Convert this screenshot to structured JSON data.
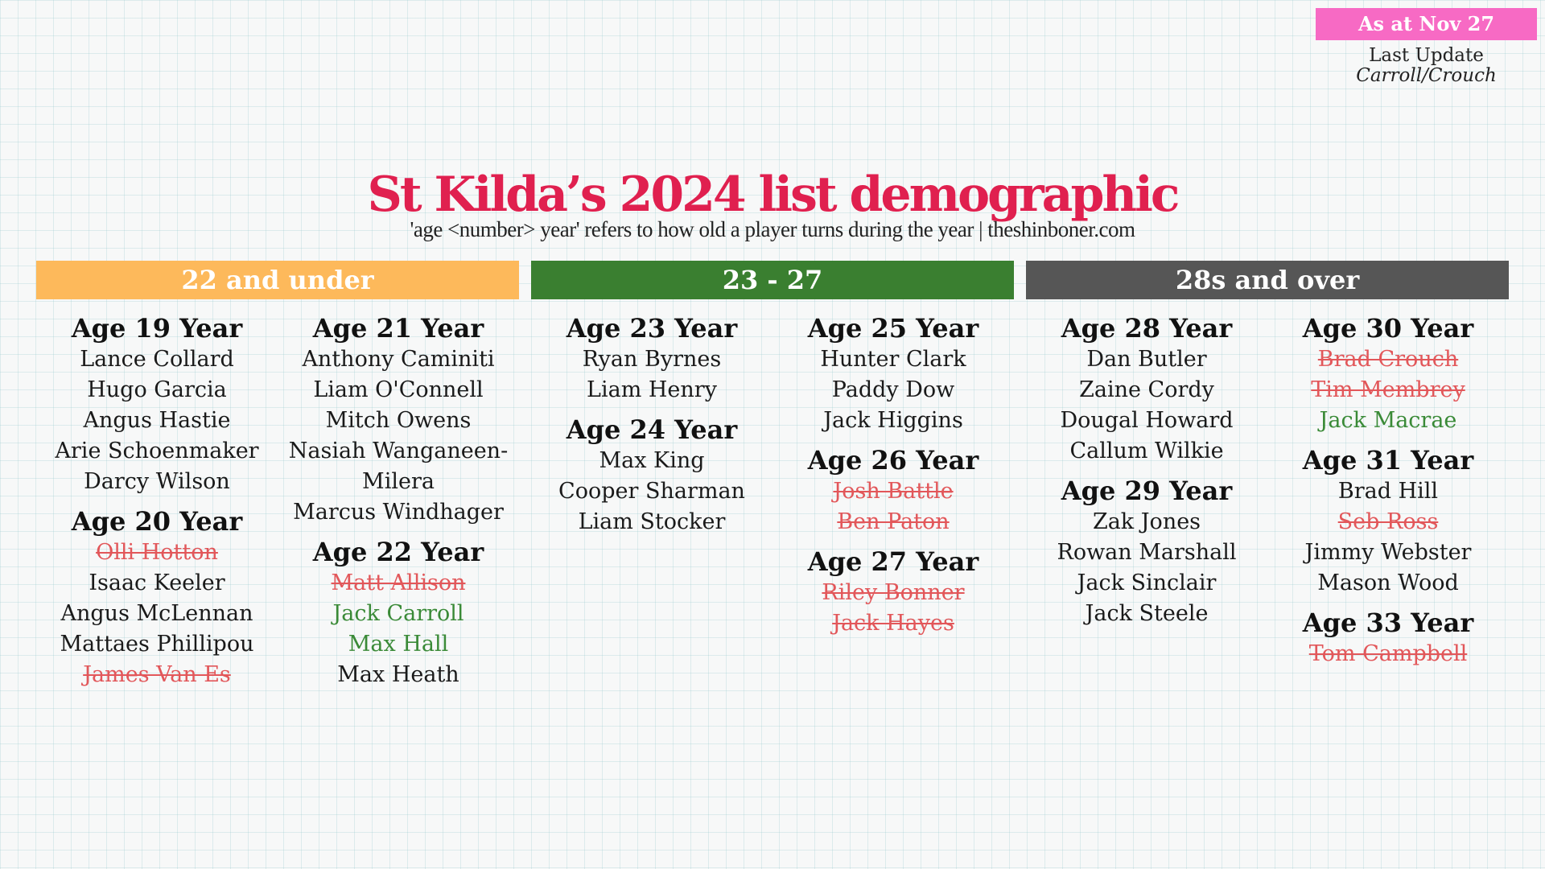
{
  "badge": "As at Nov 27",
  "last_update_label": "Last Update",
  "last_update_names": "Carroll/Crouch",
  "title": "St Kilda’s 2024 list demographic",
  "subtitle": "'age <number> year' refers to how old a player turns during the year | theshinboner.com",
  "colors": {
    "under22": "#fdb95b",
    "mid": "#3a7f30",
    "over28": "#565656",
    "title": "#e0204f",
    "departed": "#e2575a",
    "new": "#3a8a37",
    "badge": "#f76ac4"
  },
  "groups": [
    {
      "header": "22 and under",
      "columns": [
        [
          {
            "age": "Age 19 Year",
            "players": [
              {
                "name": "Lance Collard",
                "status": "current"
              },
              {
                "name": "Hugo Garcia",
                "status": "current"
              },
              {
                "name": "Angus Hastie",
                "status": "current"
              },
              {
                "name": "Arie Schoenmaker",
                "status": "current"
              },
              {
                "name": "Darcy Wilson",
                "status": "current"
              }
            ]
          },
          {
            "age": "Age 20 Year",
            "players": [
              {
                "name": "Olli Hotton",
                "status": "departed"
              },
              {
                "name": "Isaac Keeler",
                "status": "current"
              },
              {
                "name": "Angus McLennan",
                "status": "current"
              },
              {
                "name": "Mattaes Phillipou",
                "status": "current"
              },
              {
                "name": "James Van Es",
                "status": "departed"
              }
            ]
          }
        ],
        [
          {
            "age": "Age 21 Year",
            "players": [
              {
                "name": "Anthony Caminiti",
                "status": "current"
              },
              {
                "name": "Liam O'Connell",
                "status": "current"
              },
              {
                "name": "Mitch Owens",
                "status": "current"
              },
              {
                "name": "Nasiah Wanganeen-",
                "status": "current"
              },
              {
                "name": "Milera",
                "status": "current"
              },
              {
                "name": "Marcus Windhager",
                "status": "current"
              }
            ]
          },
          {
            "age": "Age 22 Year",
            "players": [
              {
                "name": "Matt Allison",
                "status": "departed"
              },
              {
                "name": "Jack Carroll",
                "status": "new"
              },
              {
                "name": "Max Hall",
                "status": "new"
              },
              {
                "name": "Max Heath",
                "status": "current"
              }
            ]
          }
        ]
      ]
    },
    {
      "header": "23 - 27",
      "columns": [
        [
          {
            "age": "Age 23 Year",
            "players": [
              {
                "name": "Ryan Byrnes",
                "status": "current"
              },
              {
                "name": "Liam Henry",
                "status": "current"
              }
            ]
          },
          {
            "age": "Age 24 Year",
            "players": [
              {
                "name": "Max King",
                "status": "current"
              },
              {
                "name": "Cooper Sharman",
                "status": "current"
              },
              {
                "name": "Liam Stocker",
                "status": "current"
              }
            ]
          }
        ],
        [
          {
            "age": "Age 25 Year",
            "players": [
              {
                "name": "Hunter Clark",
                "status": "current"
              },
              {
                "name": "Paddy Dow",
                "status": "current"
              },
              {
                "name": "Jack Higgins",
                "status": "current"
              }
            ]
          },
          {
            "age": "Age 26 Year",
            "players": [
              {
                "name": "Josh Battle",
                "status": "departed"
              },
              {
                "name": "Ben Paton",
                "status": "departed"
              }
            ]
          },
          {
            "age": "Age 27 Year",
            "players": [
              {
                "name": "Riley Bonner",
                "status": "departed"
              },
              {
                "name": "Jack Hayes",
                "status": "departed"
              }
            ]
          }
        ]
      ]
    },
    {
      "header": "28s and over",
      "columns": [
        [
          {
            "age": "Age 28 Year",
            "players": [
              {
                "name": "Dan Butler",
                "status": "current"
              },
              {
                "name": "Zaine Cordy",
                "status": "current"
              },
              {
                "name": "Dougal Howard",
                "status": "current"
              },
              {
                "name": "Callum Wilkie",
                "status": "current"
              }
            ]
          },
          {
            "age": "Age 29 Year",
            "players": [
              {
                "name": "Zak Jones",
                "status": "current"
              },
              {
                "name": "Rowan Marshall",
                "status": "current"
              },
              {
                "name": "Jack Sinclair",
                "status": "current"
              },
              {
                "name": "Jack Steele",
                "status": "current"
              }
            ]
          }
        ],
        [
          {
            "age": "Age 30 Year",
            "players": [
              {
                "name": "Brad Crouch",
                "status": "departed"
              },
              {
                "name": "Tim Membrey",
                "status": "departed"
              },
              {
                "name": "Jack Macrae",
                "status": "new"
              }
            ]
          },
          {
            "age": "Age 31 Year",
            "players": [
              {
                "name": "Brad Hill",
                "status": "current"
              },
              {
                "name": "Seb Ross",
                "status": "departed"
              },
              {
                "name": "Jimmy Webster",
                "status": "current"
              },
              {
                "name": "Mason Wood",
                "status": "current"
              }
            ]
          },
          {
            "age": "Age 33 Year",
            "players": [
              {
                "name": "Tom Campbell",
                "status": "departed"
              }
            ]
          }
        ]
      ]
    }
  ]
}
